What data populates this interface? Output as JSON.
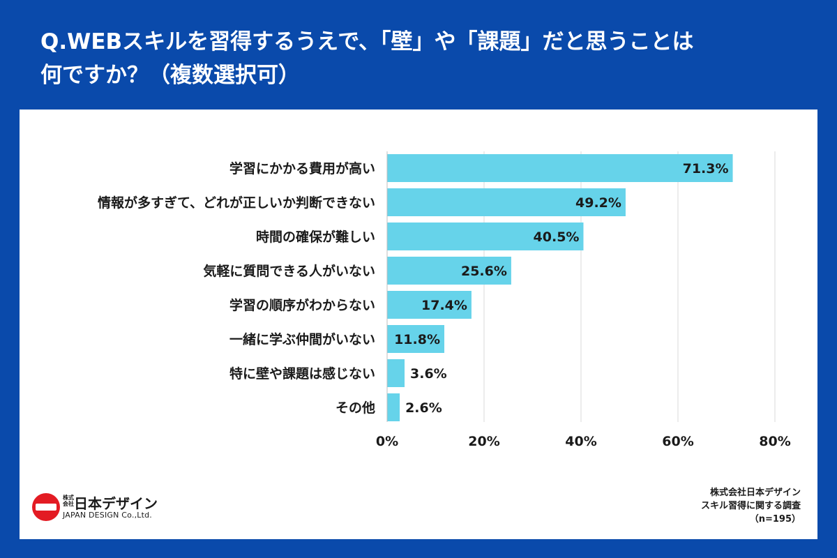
{
  "header": {
    "title_line1": "Q.WEBスキルを習得するうえで、「壁」や「課題」だと思うことは",
    "title_line2": "何ですか？（複数選択可）"
  },
  "chart_data": {
    "type": "bar",
    "orientation": "horizontal",
    "categories": [
      "学習にかかる費用が高い",
      "情報が多すぎて、どれが正しいか判断できない",
      "時間の確保が難しい",
      "気軽に質問できる人がいない",
      "学習の順序がわからない",
      "一緒に学ぶ仲間がいない",
      "特に壁や課題は感じない",
      "その他"
    ],
    "values": [
      71.3,
      49.2,
      40.5,
      25.6,
      17.4,
      11.8,
      3.6,
      2.6
    ],
    "value_labels": [
      "71.3%",
      "49.2%",
      "40.5%",
      "25.6%",
      "17.4%",
      "11.8%",
      "3.6%",
      "2.6%"
    ],
    "xlim": [
      0,
      80
    ],
    "xticks": [
      0,
      20,
      40,
      60,
      80
    ],
    "xtick_labels": [
      "0%",
      "20%",
      "40%",
      "60%",
      "80%"
    ],
    "grid": true,
    "bar_color": "#66d3ea"
  },
  "footer": {
    "logo_small": "株式会社",
    "logo_name": "日本デザイン",
    "logo_en": "JAPAN DESIGN Co.,Ltd.",
    "source_line1": "株式会社日本デザイン",
    "source_line2": "スキル習得に関する調査",
    "source_line3": "（n=195）"
  },
  "colors": {
    "background": "#0a4aab",
    "panel": "#ffffff",
    "bar": "#66d3ea",
    "logo_red": "#e31b23"
  }
}
